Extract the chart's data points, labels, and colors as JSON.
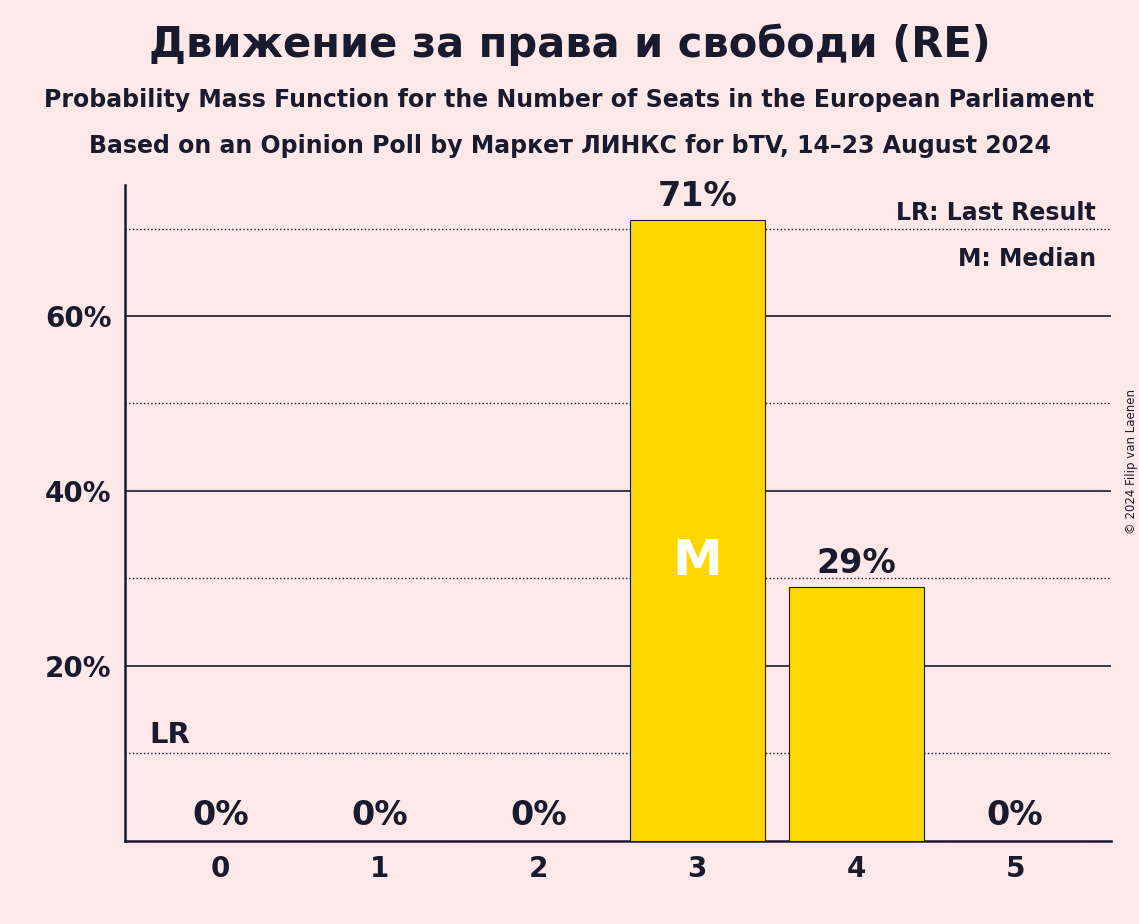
{
  "title": "Движение за права и свободи (RE)",
  "subtitle1": "Probability Mass Function for the Number of Seats in the European Parliament",
  "subtitle2": "Based on an Opinion Poll by Маркет ЛИНКС for bTV, 14–23 August 2024",
  "copyright": "© 2024 Filip van Laenen",
  "categories": [
    0,
    1,
    2,
    3,
    4,
    5
  ],
  "values": [
    0,
    0,
    0,
    71,
    29,
    0
  ],
  "bar_color": "#FFD700",
  "bar_edge_color": "#1a1a2e",
  "background_color": "#fce8e8",
  "text_color": "#1a1a2e",
  "lr_value": 10,
  "median_seat": 3,
  "ylim": [
    0,
    75
  ],
  "yticks_solid": [
    0,
    20,
    40,
    60
  ],
  "yticks_dotted": [
    10,
    30,
    50,
    70
  ],
  "ytick_labels_positions": [
    20,
    40,
    60
  ],
  "ytick_labels_text": [
    "20%",
    "40%",
    "60%"
  ],
  "lr_label": "LR",
  "median_label": "M",
  "legend_lr": "LR: Last Result",
  "legend_m": "M: Median",
  "title_fontsize": 30,
  "subtitle_fontsize": 17,
  "tick_fontsize": 20,
  "bar_label_fontsize": 24,
  "annotation_fontsize": 21,
  "legend_fontsize": 17
}
